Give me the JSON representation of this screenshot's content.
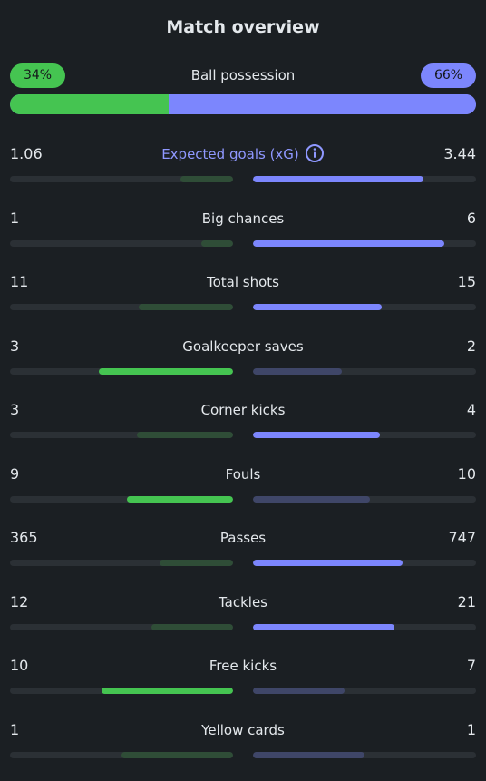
{
  "title": "Match overview",
  "possession": {
    "label": "Ball possession",
    "home": "34%",
    "away": "66%",
    "home_fraction": 0.34
  },
  "colors": {
    "home": "#45c451",
    "away": "#7c86fd",
    "home_muted": "#2f4d37",
    "away_muted": "#3f4668",
    "track": "#2b3035",
    "accent_text": "#8f98ff"
  },
  "stats": [
    {
      "name": "Expected goals (xG)",
      "home": "1.06",
      "away": "3.44",
      "home_num": 1.06,
      "away_num": 3.44,
      "info_icon": "info-icon"
    },
    {
      "name": "Big chances",
      "home": "1",
      "away": "6",
      "home_num": 1,
      "away_num": 6
    },
    {
      "name": "Total shots",
      "home": "11",
      "away": "15",
      "home_num": 11,
      "away_num": 15
    },
    {
      "name": "Goalkeeper saves",
      "home": "3",
      "away": "2",
      "home_num": 3,
      "away_num": 2
    },
    {
      "name": "Corner kicks",
      "home": "3",
      "away": "4",
      "home_num": 3,
      "away_num": 4
    },
    {
      "name": "Fouls",
      "home": "9",
      "away": "10",
      "home_num": 9,
      "away_num": 10
    },
    {
      "name": "Passes",
      "home": "365",
      "away": "747",
      "home_num": 365,
      "away_num": 747
    },
    {
      "name": "Tackles",
      "home": "12",
      "away": "21",
      "home_num": 12,
      "away_num": 21
    },
    {
      "name": "Free kicks",
      "home": "10",
      "away": "7",
      "home_num": 10,
      "away_num": 7
    },
    {
      "name": "Yellow cards",
      "home": "1",
      "away": "1",
      "home_num": 1,
      "away_num": 1
    }
  ]
}
